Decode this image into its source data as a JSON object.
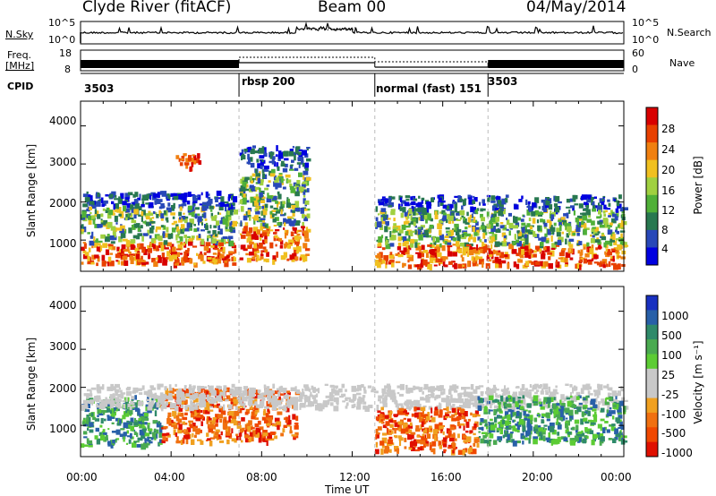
{
  "header": {
    "station": "Clyde River (fitACF)",
    "beam": "Beam 00",
    "date": "04/May/2014"
  },
  "nsky_panel": {
    "left_label": "N.Sky",
    "right_label": "N.Search",
    "left_ticks": [
      "10^5",
      "10^0"
    ],
    "right_ticks": [
      "10^5",
      "10^0"
    ]
  },
  "freq_panel": {
    "left_label_1": "Freq.",
    "left_label_2": "[MHz]",
    "right_label": "Nave",
    "left_ticks": [
      "18",
      "8"
    ],
    "right_ticks": [
      "60",
      "0"
    ]
  },
  "cpid_panel": {
    "label": "CPID",
    "modes": [
      {
        "name": "3503",
        "start_hour": 0
      },
      {
        "name": "rbsp 200",
        "start_hour": 7.0
      },
      {
        "name": "normal (fast) 151",
        "start_hour": 13.0
      },
      {
        "name": "3503",
        "start_hour": 18.0
      }
    ]
  },
  "x_axis": {
    "label": "Time UT",
    "range_hours": [
      0,
      24
    ],
    "tick_labels": [
      "00:00",
      "04:00",
      "08:00",
      "12:00",
      "16:00",
      "20:00",
      "00:00"
    ]
  },
  "power_panel": {
    "ylabel": "Slant Range [km]",
    "y_ticks": [
      "4000",
      "3000",
      "2000",
      "1000"
    ],
    "colorbar_label": "Power [dB]",
    "colorbar_ticks": [
      "28",
      "24",
      "20",
      "16",
      "12",
      "8",
      "4"
    ],
    "colors": [
      "#0000e0",
      "#2848b8",
      "#287850",
      "#50b038",
      "#a0d040",
      "#f0c020",
      "#f08010",
      "#e84000",
      "#d80000"
    ]
  },
  "velocity_panel": {
    "ylabel": "Slant Range [km]",
    "y_ticks": [
      "4000",
      "3000",
      "2000",
      "1000"
    ],
    "colorbar_label": "Velocity [m s⁻¹]",
    "colorbar_ticks": [
      "1000",
      "500",
      "100",
      "25",
      "-25",
      "-100",
      "-500",
      "-1000"
    ],
    "colors": [
      "#1830c0",
      "#2860a8",
      "#2f8a6a",
      "#4aaa50",
      "#5ccc34",
      "#c8c8c8",
      "#c8c8c8",
      "#f0a020",
      "#f07010",
      "#f04800",
      "#e01000"
    ]
  },
  "chart_data": {
    "type": "heatmap",
    "title": "Clyde River (fitACF)  Beam 00  04/May/2014",
    "xlabel": "Time UT",
    "ylabel": "Slant Range [km]",
    "x_range_hours": [
      0,
      24
    ],
    "ylim_km": [
      180,
      4650
    ],
    "power_regions": [
      {
        "t0": 0.0,
        "t1": 6.8,
        "r0": 400,
        "r1": 2300,
        "level": "mixed"
      },
      {
        "t0": 4.2,
        "t1": 5.2,
        "r0": 2900,
        "r1": 3300,
        "level": "high"
      },
      {
        "t0": 7.0,
        "t1": 10.0,
        "r0": 500,
        "r1": 3500,
        "level": "mixed"
      },
      {
        "t0": 13.0,
        "t1": 24.0,
        "r0": 350,
        "r1": 2200,
        "level": "mixed"
      }
    ],
    "velocity_regions": [
      {
        "t0": 0.0,
        "t1": 3.5,
        "r0": 500,
        "r1": 1800,
        "sign": "positive"
      },
      {
        "t0": 3.5,
        "t1": 9.5,
        "r0": 600,
        "r1": 2000,
        "sign": "negative"
      },
      {
        "t0": 0.0,
        "t1": 24.0,
        "r0": 1500,
        "r1": 2100,
        "sign": "near-zero"
      },
      {
        "t0": 13.0,
        "t1": 17.5,
        "r0": 350,
        "r1": 1500,
        "sign": "negative"
      },
      {
        "t0": 17.5,
        "t1": 24.0,
        "r0": 600,
        "r1": 1800,
        "sign": "positive"
      }
    ]
  }
}
